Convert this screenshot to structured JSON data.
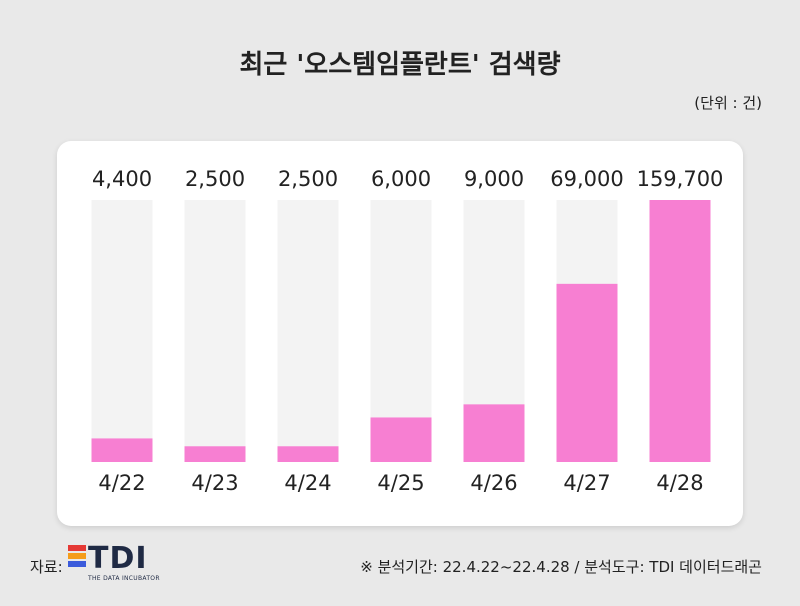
{
  "title": "최근 '오스템임플란트' 검색량",
  "unit_note": "(단위 : 건)",
  "source_label": "자료:",
  "logo": {
    "text": "TDI",
    "subtitle": "THE DATA INCUBATOR",
    "colors": [
      "#e53935",
      "#f59c1a",
      "#3b5bdb"
    ]
  },
  "footnote": "※ 분석기간: 22.4.22~22.4.28 / 분석도구: TDI 데이터드래곤",
  "colors": {
    "bar": "#f77fd2",
    "track": "#f3f3f3",
    "card": "#ffffff",
    "background": "#e9e9e9"
  },
  "chart_data": {
    "type": "bar",
    "categories": [
      "4/22",
      "4/23",
      "4/24",
      "4/25",
      "4/26",
      "4/27",
      "4/28"
    ],
    "values": [
      4400,
      2500,
      2500,
      6000,
      9000,
      69000,
      159700
    ],
    "value_labels": [
      "4,400",
      "2,500",
      "2,500",
      "6,000",
      "9,000",
      "69,000",
      "159,700"
    ],
    "bar_fill_levels": [
      0.09,
      0.06,
      0.06,
      0.17,
      0.22,
      0.68,
      1.0
    ],
    "title": "최근 '오스템임플란트' 검색량",
    "xlabel": "",
    "ylabel": "",
    "grid": false,
    "legend": "none"
  }
}
